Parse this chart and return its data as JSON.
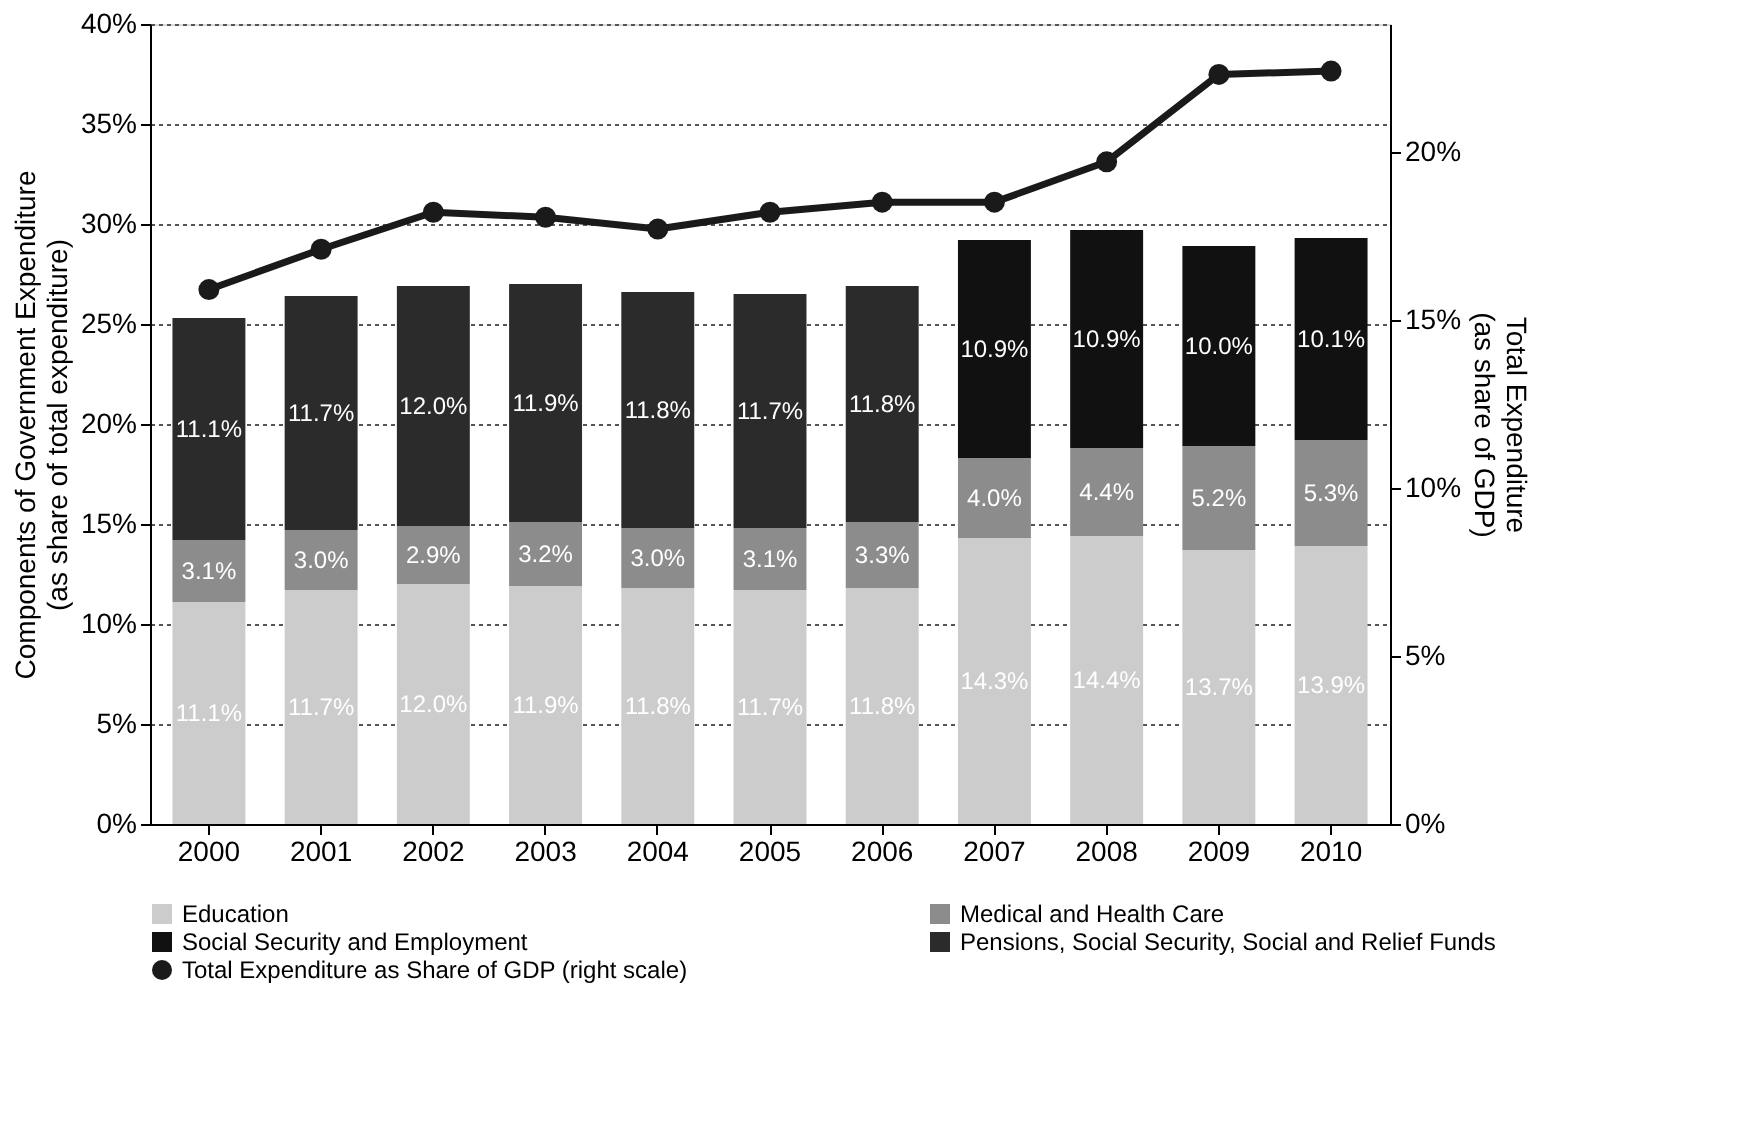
{
  "chart_data": {
    "type": "bar",
    "stacked": true,
    "categories": [
      "2000",
      "2001",
      "2002",
      "2003",
      "2004",
      "2005",
      "2006",
      "2007",
      "2008",
      "2009",
      "2010"
    ],
    "series": [
      {
        "name": "Education",
        "color": "#cccccc",
        "values": [
          11.1,
          11.7,
          12.0,
          11.9,
          11.8,
          11.7,
          11.8,
          14.3,
          14.4,
          13.7,
          13.9
        ],
        "value_labels": [
          "11.1%",
          "11.7%",
          "12.0%",
          "11.9%",
          "11.8%",
          "11.7%",
          "11.8%",
          "14.3%",
          "14.4%",
          "13.7%",
          "13.9%"
        ]
      },
      {
        "name": "Medical and Health Care",
        "color": "#8c8c8c",
        "values": [
          3.1,
          3.0,
          2.9,
          3.2,
          3.0,
          3.1,
          3.3,
          4.0,
          4.4,
          5.2,
          5.3
        ],
        "value_labels": [
          "3.1%",
          "3.0%",
          "2.9%",
          "3.2%",
          "3.0%",
          "3.1%",
          "3.3%",
          "4.0%",
          "4.4%",
          "5.2%",
          "5.3%"
        ]
      },
      {
        "name": "Social Security and Employment",
        "color": "#111111",
        "values": [
          null,
          null,
          null,
          null,
          null,
          null,
          null,
          10.9,
          10.9,
          10.0,
          10.1
        ],
        "value_labels": [
          null,
          null,
          null,
          null,
          null,
          null,
          null,
          "10.9%",
          "10.9%",
          "10.0%",
          "10.1%"
        ]
      },
      {
        "name": "Pensions, Social Security, Social and Relief Funds",
        "color": "#2b2b2b",
        "values": [
          11.1,
          11.7,
          12.0,
          11.9,
          11.8,
          11.7,
          11.8,
          null,
          null,
          null,
          null
        ],
        "value_labels": [
          "11.1%",
          "11.7%",
          "12.0%",
          "11.9%",
          "11.8%",
          "11.7%",
          "11.8%",
          null,
          null,
          null,
          null
        ]
      },
      {
        "name": "Total Expenditure as Share of GDP (right scale)",
        "type": "line",
        "axis": "y2",
        "color": "#1a1a1a",
        "marker": "circle",
        "values": [
          15.9,
          17.1,
          18.2,
          18.05,
          17.7,
          18.2,
          18.5,
          18.5,
          19.7,
          22.3,
          22.4
        ]
      }
    ],
    "ylabel": "Components of Government Expenditure\n(as share of total expenditure)",
    "y2label": "Total Expenditure\n(as share of GDP)",
    "ylim": [
      0,
      40
    ],
    "yticks": [
      {
        "value": 0,
        "label": "0%"
      },
      {
        "value": 5,
        "label": "5%"
      },
      {
        "value": 10,
        "label": "10%"
      },
      {
        "value": 15,
        "label": "15%"
      },
      {
        "value": 20,
        "label": "20%"
      },
      {
        "value": 25,
        "label": "25%"
      },
      {
        "value": 30,
        "label": "30%"
      },
      {
        "value": 35,
        "label": "35%"
      },
      {
        "value": 40,
        "label": "40%"
      }
    ],
    "y2lim": [
      0,
      23.8
    ],
    "y2ticks": [
      {
        "value": 0,
        "label": "0%"
      },
      {
        "value": 5,
        "label": "5%"
      },
      {
        "value": 10,
        "label": "10%"
      },
      {
        "value": 15,
        "label": "15%"
      },
      {
        "value": 20,
        "label": "20%"
      }
    ],
    "grid": "y",
    "legend": "bottom"
  }
}
